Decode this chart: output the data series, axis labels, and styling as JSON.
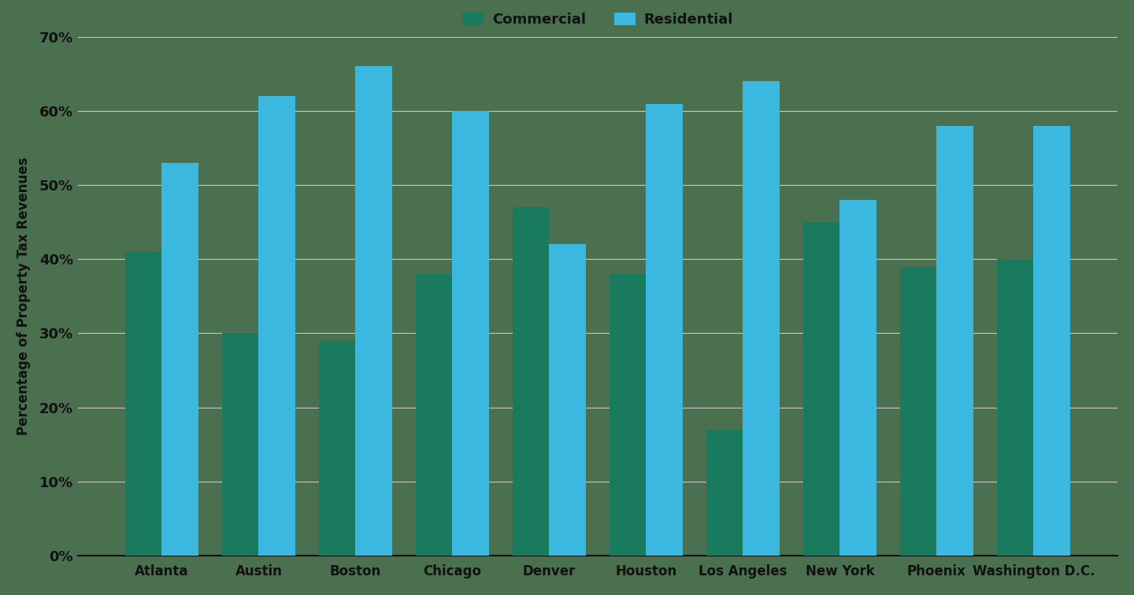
{
  "cities": [
    "Atlanta",
    "Austin",
    "Boston",
    "Chicago",
    "Denver",
    "Houston",
    "Los Angeles",
    "New York",
    "Phoenix",
    "Washington D.C."
  ],
  "commercial": [
    41,
    30,
    29,
    38,
    47,
    38,
    17,
    45,
    39,
    40
  ],
  "residential": [
    53,
    62,
    66,
    60,
    42,
    61,
    64,
    48,
    58,
    58
  ],
  "commercial_color": "#1a7a5e",
  "residential_color": "#3ab8e0",
  "background_color": "#4a7050",
  "ylabel": "Percentage of Property Tax Revenues",
  "legend_commercial": "Commercial",
  "legend_residential": "Residential",
  "ylim": [
    0,
    70
  ],
  "yticks": [
    0,
    10,
    20,
    30,
    40,
    50,
    60,
    70
  ],
  "bar_width": 0.38,
  "grid_color": "#c8c8c8",
  "tick_label_color": "#111111",
  "axis_label_color": "#111111",
  "legend_text_color": "#111111"
}
